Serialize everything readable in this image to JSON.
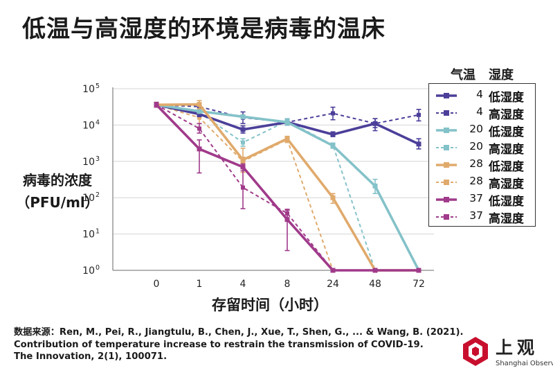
{
  "title": "低温与高湿度的环境是病毒的温床",
  "legend_header": {
    "temp": "气温",
    "humidity": "湿度"
  },
  "chart_data": {
    "type": "line",
    "title": "低温与高湿度的环境是病毒的温床",
    "xlabel": "存留时间（小时）",
    "ylabel_line1": "病毒的浓度",
    "ylabel_line2": "（PFU/ml）",
    "y_scale": "log10",
    "ylim": [
      1,
      100000
    ],
    "x_categories": [
      "0",
      "1",
      "4",
      "8",
      "24",
      "48",
      "72"
    ],
    "y_ticks": [
      {
        "base": "10",
        "exp": "0"
      },
      {
        "base": "10",
        "exp": "1"
      },
      {
        "base": "10",
        "exp": "3"
      },
      {
        "base": "10",
        "exp": "2"
      },
      {
        "base": "10",
        "exp": "4"
      },
      {
        "base": "10",
        "exp": "5"
      }
    ],
    "y_tick_values": [
      1,
      10,
      1000,
      100,
      10000,
      100000
    ],
    "grid": true,
    "legend_position": "right",
    "series": [
      {
        "temp": "4",
        "humidity": "低湿度",
        "color": "#4b3f9a",
        "dashed": false,
        "values": [
          36000,
          20000,
          7500,
          12000,
          5500,
          11000,
          3000
        ],
        "err_lo": [
          31000,
          17000,
          6000,
          10000,
          4800,
          8500,
          2200
        ],
        "err_hi": [
          42000,
          24000,
          9500,
          14000,
          6500,
          15000,
          4200
        ]
      },
      {
        "temp": "4",
        "humidity": "高湿度",
        "color": "#4b3f9a",
        "dashed": true,
        "values": [
          36000,
          32000,
          16000,
          12000,
          21000,
          11000,
          19000
        ],
        "err_lo": [
          31000,
          27000,
          11000,
          10000,
          14000,
          7000,
          13000
        ],
        "err_hi": [
          42000,
          38000,
          23000,
          14000,
          31000,
          15000,
          27000
        ]
      },
      {
        "temp": "20",
        "humidity": "低湿度",
        "color": "#84c2c9",
        "dashed": false,
        "values": [
          36000,
          24000,
          17000,
          12000,
          2700,
          210,
          1
        ],
        "err_lo": [
          31000,
          21000,
          15000,
          10000,
          2300,
          130,
          1
        ],
        "err_hi": [
          42000,
          28000,
          19000,
          14000,
          3100,
          320,
          1
        ]
      },
      {
        "temp": "20",
        "humidity": "高湿度",
        "color": "#84c2c9",
        "dashed": true,
        "values": [
          36000,
          22000,
          3300,
          13000,
          2800,
          1,
          1
        ],
        "err_lo": [
          31000,
          19000,
          2600,
          11000,
          2400,
          1,
          1
        ],
        "err_hi": [
          42000,
          26000,
          4200,
          15000,
          3200,
          1,
          1
        ]
      },
      {
        "temp": "28",
        "humidity": "低湿度",
        "color": "#e0aa6c",
        "dashed": false,
        "values": [
          36000,
          37000,
          1100,
          4200,
          100,
          1,
          1
        ],
        "err_lo": [
          31000,
          28000,
          900,
          3500,
          70,
          1,
          1
        ],
        "err_hi": [
          42000,
          47000,
          1300,
          4900,
          130,
          1,
          1
        ]
      },
      {
        "temp": "28",
        "humidity": "高湿度",
        "color": "#e0aa6c",
        "dashed": true,
        "values": [
          36000,
          16000,
          1000,
          4000,
          1,
          1,
          1
        ],
        "err_lo": [
          31000,
          11000,
          500,
          3300,
          1,
          1,
          1
        ],
        "err_hi": [
          42000,
          22000,
          2300,
          4700,
          1,
          1,
          1
        ]
      },
      {
        "temp": "37",
        "humidity": "低湿度",
        "color": "#a03a8a",
        "dashed": false,
        "values": [
          36000,
          2200,
          700,
          25,
          1,
          1,
          1
        ],
        "err_lo": [
          31000,
          480,
          550,
          3.5,
          1,
          1,
          1
        ],
        "err_hi": [
          42000,
          3900,
          850,
          45,
          1,
          1,
          1
        ]
      },
      {
        "temp": "37",
        "humidity": "高湿度",
        "color": "#a03a8a",
        "dashed": true,
        "values": [
          36000,
          8000,
          190,
          37,
          1,
          1,
          1
        ],
        "err_lo": [
          31000,
          6000,
          50,
          28,
          1,
          1,
          1
        ],
        "err_hi": [
          42000,
          11000,
          700,
          48,
          1,
          1,
          1
        ]
      }
    ]
  },
  "source": {
    "line1": "数据来源：Ren, M., Pei, R., Jiangtulu, B., Chen, J., Xue, T., Shen, G., ... & Wang, B. (2021).",
    "line2": "Contribution of temperature increase to restrain the transmission of COVID-19.",
    "line3": "The Innovation, 2(1), 100071."
  },
  "logo": {
    "name_cn": "上观",
    "name_en": "Shanghai Observer",
    "color": "#c8102e"
  }
}
